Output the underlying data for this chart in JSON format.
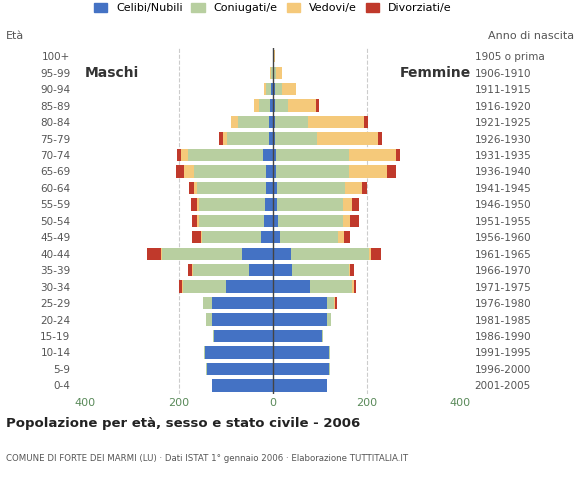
{
  "age_groups": [
    "0-4",
    "5-9",
    "10-14",
    "15-19",
    "20-24",
    "25-29",
    "30-34",
    "35-39",
    "40-44",
    "45-49",
    "50-54",
    "55-59",
    "60-64",
    "65-69",
    "70-74",
    "75-79",
    "80-84",
    "85-89",
    "90-94",
    "95-99",
    "100+"
  ],
  "birth_years": [
    "2001-2005",
    "1996-2000",
    "1991-1995",
    "1986-1990",
    "1981-1985",
    "1976-1980",
    "1971-1975",
    "1966-1970",
    "1961-1965",
    "1956-1960",
    "1951-1955",
    "1946-1950",
    "1941-1945",
    "1936-1940",
    "1931-1935",
    "1926-1930",
    "1921-1925",
    "1916-1920",
    "1911-1915",
    "1906-1910",
    "1905 o prima"
  ],
  "males": {
    "celibi": [
      130,
      140,
      145,
      125,
      130,
      130,
      100,
      50,
      65,
      25,
      18,
      16,
      15,
      13,
      20,
      8,
      8,
      5,
      3,
      0,
      0
    ],
    "coniugati": [
      0,
      2,
      2,
      3,
      12,
      18,
      90,
      120,
      170,
      125,
      138,
      140,
      145,
      155,
      160,
      90,
      65,
      25,
      10,
      3,
      0
    ],
    "vedovi": [
      0,
      0,
      0,
      0,
      0,
      0,
      2,
      2,
      2,
      3,
      4,
      5,
      8,
      20,
      15,
      8,
      15,
      10,
      5,
      3,
      0
    ],
    "divorziati": [
      0,
      0,
      0,
      0,
      0,
      0,
      8,
      8,
      30,
      18,
      12,
      12,
      10,
      18,
      8,
      8,
      0,
      0,
      0,
      0,
      0
    ]
  },
  "females": {
    "celibi": [
      115,
      120,
      120,
      105,
      115,
      115,
      80,
      42,
      40,
      15,
      12,
      10,
      10,
      8,
      8,
      5,
      5,
      5,
      5,
      3,
      0
    ],
    "coniugati": [
      0,
      2,
      2,
      3,
      10,
      15,
      90,
      120,
      165,
      125,
      138,
      140,
      145,
      155,
      155,
      90,
      70,
      28,
      15,
      5,
      0
    ],
    "vedovi": [
      0,
      0,
      0,
      0,
      0,
      2,
      3,
      3,
      5,
      12,
      15,
      20,
      35,
      80,
      100,
      130,
      120,
      60,
      30,
      12,
      5
    ],
    "divorziati": [
      0,
      0,
      0,
      0,
      0,
      5,
      5,
      8,
      20,
      12,
      18,
      15,
      12,
      20,
      8,
      8,
      8,
      5,
      0,
      0,
      0
    ]
  },
  "colors": {
    "celibi": "#4472c4",
    "coniugati": "#b8cfa0",
    "vedovi": "#f5c97a",
    "divorziati": "#c0392b"
  },
  "title": "Popolazione per età, sesso e stato civile - 2006",
  "subtitle": "COMUNE DI FORTE DEI MARMI (LU) · Dati ISTAT 1° gennaio 2006 · Elaborazione TUTTITALIA.IT",
  "xlim": 420,
  "bg_color": "#ffffff",
  "grid_color": "#cccccc",
  "legend_labels": [
    "Celibi/Nubili",
    "Coniugati/e",
    "Vedovi/e",
    "Divorziati/e"
  ]
}
